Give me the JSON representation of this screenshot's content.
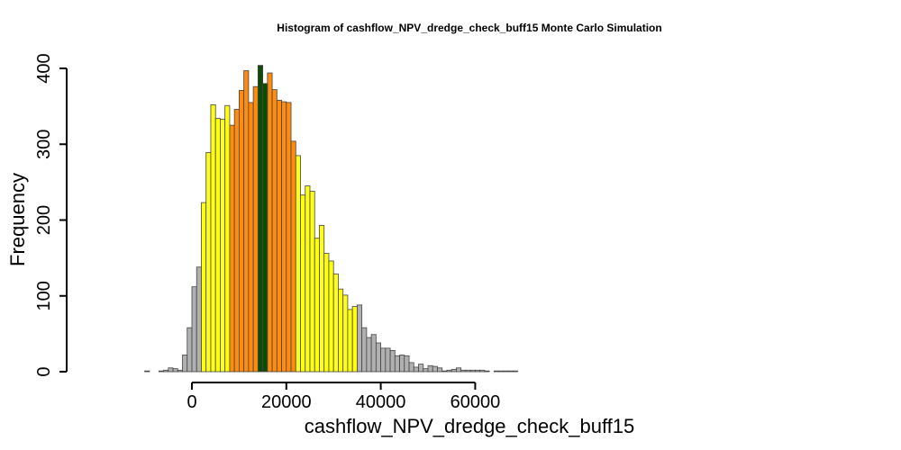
{
  "chart_data": {
    "type": "bar",
    "title": "Histogram of  cashflow_NPV_dredge_check_buff15  Monte Carlo Simulation",
    "xlabel": "cashflow_NPV_dredge_check_buff15",
    "ylabel": "Frequency",
    "bin_width": 1000,
    "xlim": [
      -10000,
      69000
    ],
    "ylim": [
      0,
      400
    ],
    "x_ticks": [
      0,
      20000,
      40000,
      60000
    ],
    "x_tick_labels": [
      "0",
      "20000",
      "40000",
      "60000"
    ],
    "y_ticks": [
      0,
      100,
      200,
      300,
      400
    ],
    "y_tick_labels": [
      "0",
      "100",
      "200",
      "300",
      "400"
    ],
    "grid": false,
    "legend": "none",
    "colors": {
      "gray": "#b0b0b0",
      "yellow": "#ffff14",
      "orange": "#ff8c0e",
      "green": "#0b4d04",
      "edge": "#444444"
    },
    "color_ranges": [
      {
        "from": -10000,
        "to": 2000,
        "color": "gray"
      },
      {
        "from": 2000,
        "to": 8000,
        "color": "yellow"
      },
      {
        "from": 8000,
        "to": 14000,
        "color": "orange"
      },
      {
        "from": 14000,
        "to": 16000,
        "color": "green"
      },
      {
        "from": 16000,
        "to": 22000,
        "color": "orange"
      },
      {
        "from": 22000,
        "to": 35000,
        "color": "yellow"
      },
      {
        "from": 35000,
        "to": 69000,
        "color": "gray"
      }
    ],
    "bins_start": -10000,
    "counts": [
      1,
      0,
      0,
      1,
      2,
      5,
      4,
      2,
      22,
      58,
      112,
      138,
      223,
      289,
      352,
      334,
      333,
      351,
      325,
      346,
      371,
      397,
      355,
      376,
      404,
      380,
      394,
      372,
      358,
      356,
      355,
      304,
      285,
      233,
      245,
      238,
      176,
      193,
      156,
      146,
      129,
      109,
      101,
      82,
      86,
      88,
      58,
      45,
      49,
      38,
      31,
      31,
      28,
      21,
      22,
      21,
      12,
      6,
      10,
      4,
      8,
      7,
      5,
      1,
      2,
      3,
      5,
      2,
      2,
      2,
      2,
      2,
      1,
      0,
      1,
      1,
      1,
      1,
      1
    ]
  }
}
